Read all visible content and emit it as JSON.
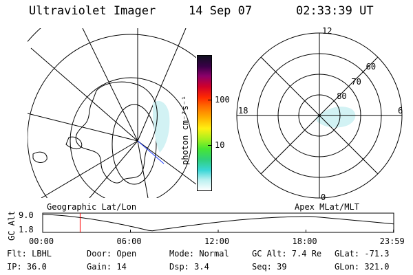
{
  "header": {
    "instrument": "Ultraviolet Imager",
    "date": "14 Sep 07",
    "time": "02:33:39 UT"
  },
  "colorbar": {
    "unit_label": "photon cm⁻²s⁻¹",
    "ticks": [
      {
        "label": "100",
        "value": 100
      },
      {
        "label": "10",
        "value": 10
      }
    ],
    "colors": [
      "#ffffff",
      "#b8f0f0",
      "#39d6d6",
      "#2fd07a",
      "#48e632",
      "#a6f01e",
      "#fff012",
      "#ffb000",
      "#ff7000",
      "#ff2a00",
      "#d1002a",
      "#8a006a",
      "#3a0048",
      "#101020"
    ]
  },
  "polar_plot": {
    "hour_labels": [
      {
        "label": "12",
        "hour": 12
      },
      {
        "label": "18",
        "hour": 18
      },
      {
        "label": "6",
        "hour": 6
      },
      {
        "label": "0",
        "hour": 0
      }
    ],
    "lat_labels": [
      {
        "label": "60",
        "lat": 60
      },
      {
        "label": "70",
        "lat": 70
      },
      {
        "label": "80",
        "lat": 80
      }
    ]
  },
  "coord_labels": {
    "left": "Geographic Lat/Lon",
    "right": "Apex MLat/MLT"
  },
  "alt_plot": {
    "axis_label": "GC Alt",
    "y_ticks": [
      {
        "label": "9.0",
        "value": 9.0
      },
      {
        "label": "1.8",
        "value": 1.8
      }
    ],
    "x_ticks": [
      {
        "label": "00:00",
        "hour": 0
      },
      {
        "label": "06:00",
        "hour": 6
      },
      {
        "label": "12:00",
        "hour": 12
      },
      {
        "label": "18:00",
        "hour": 18
      },
      {
        "label": "23:59",
        "hour": 23.983
      }
    ],
    "current_hour": 2.56,
    "marker_color": "#ff0000"
  },
  "info": {
    "row1": [
      {
        "key": "flt",
        "text": "Flt: LBHL"
      },
      {
        "key": "door",
        "text": "Door: Open"
      },
      {
        "key": "mode",
        "text": "Mode: Normal"
      },
      {
        "key": "gcalt",
        "text": "GC Alt: 7.4 Re"
      },
      {
        "key": "glat",
        "text": "GLat: -71.3"
      }
    ],
    "row2": [
      {
        "key": "ip",
        "text": "IP: 36.0"
      },
      {
        "key": "gain",
        "text": "Gain: 14"
      },
      {
        "key": "dsp",
        "text": "Dsp:    3.4"
      },
      {
        "key": "seq",
        "text": "Seq: 39"
      },
      {
        "key": "glon",
        "text": "GLon: 321.0"
      }
    ]
  }
}
